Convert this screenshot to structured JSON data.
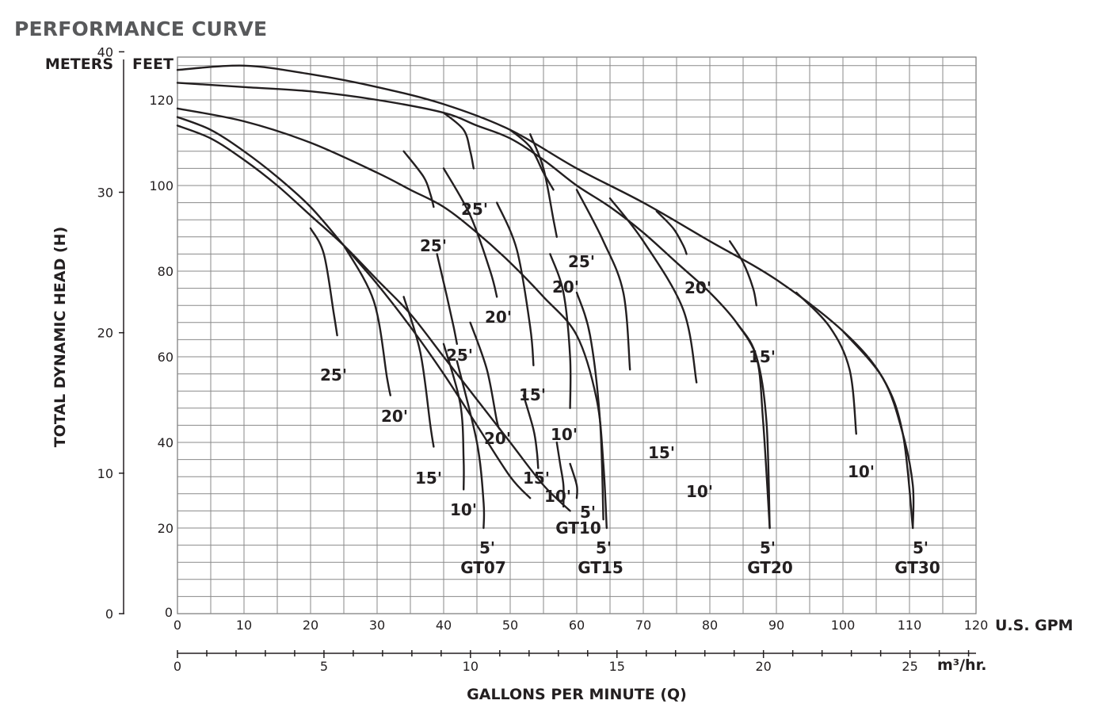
{
  "title": "PERFORMANCE CURVE",
  "chart_data": {
    "type": "line",
    "axes": {
      "y_meters_label": "METERS",
      "y_feet_label": "FEET",
      "y_title": "TOTAL DYNAMIC HEAD (H)",
      "x_gpm_label": "U.S. GPM",
      "x_m3_label": "m³/hr.",
      "x_title": "GALLONS PER MINUTE (Q)",
      "xlim_gpm": [
        0,
        120
      ],
      "ylim_ft": [
        0,
        130
      ],
      "x_gpm_ticks": [
        0,
        10,
        20,
        30,
        40,
        50,
        60,
        70,
        80,
        90,
        100,
        110,
        120
      ],
      "x_m3_ticks": [
        0,
        5,
        10,
        15,
        20,
        25
      ],
      "y_ft_ticks": [
        20,
        40,
        60,
        80,
        100,
        120
      ],
      "y_m_ticks": [
        0,
        10,
        20,
        30,
        40
      ],
      "y_ft_zero": "0",
      "grid": true
    },
    "series": [
      {
        "name": "GT07",
        "pump_curve": [
          [
            0,
            116
          ],
          [
            5,
            113
          ],
          [
            10,
            108
          ],
          [
            15,
            102
          ],
          [
            20,
            95
          ],
          [
            25,
            86
          ],
          [
            30,
            77
          ],
          [
            35,
            67
          ],
          [
            40,
            56
          ],
          [
            45,
            44
          ],
          [
            50,
            32
          ],
          [
            53,
            27
          ]
        ],
        "system_curves": [
          {
            "label": "25'",
            "points": [
              [
                20,
                90
              ],
              [
                22,
                84
              ],
              [
                23.5,
                70
              ],
              [
                24,
                65
              ]
            ]
          },
          {
            "label": "20'",
            "points": [
              [
                25,
                86
              ],
              [
                29.5,
                73
              ],
              [
                31.5,
                55
              ],
              [
                32,
                51
              ]
            ]
          },
          {
            "label": "15'",
            "points": [
              [
                34,
                74
              ],
              [
                36.5,
                61
              ],
              [
                38,
                44
              ],
              [
                38.5,
                39
              ]
            ]
          },
          {
            "label": "10'",
            "points": [
              [
                40,
                63
              ],
              [
                42.5,
                49
              ],
              [
                43,
                36
              ],
              [
                43,
                29
              ]
            ]
          },
          {
            "label": "5'",
            "points": [
              [
                42,
                59
              ],
              [
                45,
                40
              ],
              [
                46,
                26
              ],
              [
                46,
                20
              ]
            ]
          }
        ]
      },
      {
        "name": "GT10",
        "pump_curve": [
          [
            0,
            114
          ],
          [
            5,
            111
          ],
          [
            10,
            106
          ],
          [
            15,
            100
          ],
          [
            20,
            93
          ],
          [
            25,
            86
          ],
          [
            30,
            78
          ],
          [
            35,
            70
          ],
          [
            40,
            60
          ],
          [
            45,
            50
          ],
          [
            50,
            40
          ],
          [
            55,
            30
          ],
          [
            59,
            24
          ]
        ],
        "system_curves": [
          {
            "label": "25'",
            "points": [
              [
                39,
                84
              ],
              [
                40.5,
                74
              ],
              [
                41.5,
                67
              ],
              [
                42,
                63
              ]
            ]
          },
          {
            "label": "20'",
            "points": [
              [
                44,
                68
              ],
              [
                46.5,
                57
              ],
              [
                48,
                45
              ],
              [
                48.5,
                43
              ]
            ]
          },
          {
            "label": "15'",
            "points": [
              [
                52,
                51
              ],
              [
                53.5,
                43
              ],
              [
                54,
                38
              ],
              [
                54.2,
                34
              ]
            ]
          },
          {
            "label": "10'",
            "points": [
              [
                57,
                40
              ],
              [
                57.5,
                35
              ],
              [
                58,
                30
              ],
              [
                58,
                25
              ]
            ]
          },
          {
            "label": "5'",
            "points": [
              [
                59,
                35
              ],
              [
                60,
                30
              ],
              [
                60,
                27
              ]
            ]
          }
        ]
      },
      {
        "name": "GT15",
        "pump_curve": [
          [
            0,
            118
          ],
          [
            10,
            115
          ],
          [
            20,
            110
          ],
          [
            30,
            103
          ],
          [
            35,
            99
          ],
          [
            40,
            95
          ],
          [
            45,
            89
          ],
          [
            50,
            82
          ],
          [
            55,
            74
          ],
          [
            60,
            65
          ],
          [
            63,
            50
          ],
          [
            64,
            35
          ],
          [
            64.5,
            20
          ]
        ],
        "system_curves": [
          {
            "label": "25'",
            "points": [
              [
                34,
                108
              ],
              [
                37,
                102
              ],
              [
                38,
                98
              ],
              [
                38.5,
                95
              ]
            ]
          },
          {
            "label": "20'",
            "points": [
              [
                40,
                104
              ],
              [
                44,
                93
              ],
              [
                47,
                80
              ],
              [
                48,
                74
              ]
            ]
          },
          {
            "label": "15'",
            "points": [
              [
                48,
                96
              ],
              [
                51,
                85
              ],
              [
                53,
                67
              ],
              [
                53.5,
                58
              ]
            ]
          },
          {
            "label": "10'",
            "points": [
              [
                56,
                84
              ],
              [
                58,
                75
              ],
              [
                59,
                60
              ],
              [
                59,
                48
              ]
            ]
          },
          {
            "label": "5'",
            "points": [
              [
                60,
                75
              ],
              [
                62,
                65
              ],
              [
                63.5,
                45
              ],
              [
                64,
                22
              ]
            ]
          }
        ]
      },
      {
        "name": "GT20",
        "pump_curve": [
          [
            0,
            124
          ],
          [
            10,
            123
          ],
          [
            20,
            122
          ],
          [
            30,
            120
          ],
          [
            40,
            117
          ],
          [
            45,
            114
          ],
          [
            50,
            111
          ],
          [
            55,
            106
          ],
          [
            60,
            100
          ],
          [
            65,
            95
          ],
          [
            70,
            89
          ],
          [
            75,
            82
          ],
          [
            80,
            75
          ],
          [
            84,
            68
          ],
          [
            87,
            60
          ],
          [
            88,
            45
          ],
          [
            89,
            20
          ]
        ],
        "system_curves": [
          {
            "label": "25'",
            "points": [
              [
                40,
                117
              ],
              [
                43,
                113
              ],
              [
                44,
                108
              ],
              [
                44.5,
                104
              ]
            ]
          },
          {
            "label": "20'",
            "points": [
              [
                53,
                112
              ],
              [
                55,
                104
              ],
              [
                56.5,
                92
              ],
              [
                57,
                88
              ]
            ]
          },
          {
            "label": "15'",
            "points": [
              [
                60,
                99
              ],
              [
                64,
                87
              ],
              [
                67,
                75
              ],
              [
                68,
                57
              ]
            ]
          },
          {
            "label": "10'",
            "points": [
              [
                65,
                97
              ],
              [
                70,
                87
              ],
              [
                76,
                71
              ],
              [
                78,
                54
              ]
            ]
          },
          {
            "label": "5'",
            "points": [
              [
                84,
                68
              ],
              [
                87,
                60
              ],
              [
                88.5,
                45
              ],
              [
                89,
                20
              ]
            ]
          }
        ]
      },
      {
        "name": "GT30",
        "pump_curve": [
          [
            0,
            127
          ],
          [
            10,
            128
          ],
          [
            20,
            126
          ],
          [
            30,
            123
          ],
          [
            40,
            119
          ],
          [
            50,
            113
          ],
          [
            60,
            104
          ],
          [
            70,
            96
          ],
          [
            80,
            87
          ],
          [
            90,
            78
          ],
          [
            100,
            66
          ],
          [
            106,
            55
          ],
          [
            109,
            42
          ],
          [
            110.5,
            30
          ],
          [
            110.5,
            20
          ]
        ],
        "system_curves": [
          {
            "label": "25'",
            "points": [
              [
                50,
                113
              ],
              [
                53,
                109
              ],
              [
                55,
                103
              ],
              [
                56.5,
                99
              ]
            ]
          },
          {
            "label": "20'",
            "points": [
              [
                72,
                94
              ],
              [
                74.5,
                90
              ],
              [
                76,
                86
              ],
              [
                76.5,
                84
              ]
            ]
          },
          {
            "label": "15'",
            "points": [
              [
                83,
                87
              ],
              [
                85,
                82
              ],
              [
                86.5,
                76
              ],
              [
                87,
                72
              ]
            ]
          },
          {
            "label": "10'",
            "points": [
              [
                93,
                75
              ],
              [
                98,
                67
              ],
              [
                101,
                57
              ],
              [
                102,
                42
              ]
            ]
          },
          {
            "label": "5'",
            "points": [
              [
                100,
                66
              ],
              [
                106,
                55
              ],
              [
                109,
                42
              ],
              [
                110.5,
                20
              ]
            ]
          }
        ]
      }
    ]
  }
}
